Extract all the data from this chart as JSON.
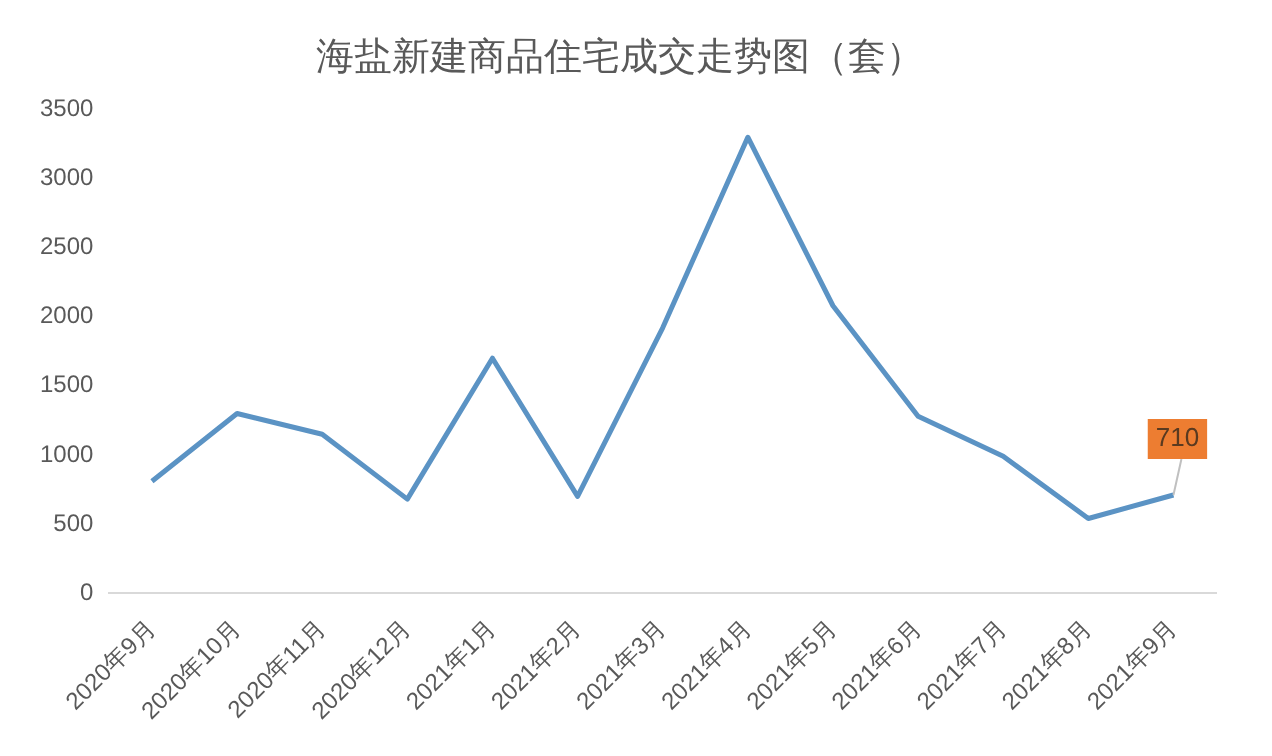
{
  "chart_data": {
    "type": "line",
    "title": "海盐新建商品住宅成交走势图（套）",
    "categories": [
      "2020年9月",
      "2020年10月",
      "2020年11月",
      "2020年12月",
      "2021年1月",
      "2021年2月",
      "2021年3月",
      "2021年4月",
      "2021年5月",
      "2021年6月",
      "2021年7月",
      "2021年8月",
      "2021年9月"
    ],
    "series": [
      {
        "color": "#5b93c4",
        "values": [
          810,
          1300,
          1150,
          680,
          1700,
          700,
          1920,
          3300,
          2080,
          1280,
          990,
          540,
          710
        ],
        "value_labels": [
          null,
          null,
          null,
          null,
          null,
          null,
          null,
          null,
          null,
          null,
          null,
          null,
          "710"
        ]
      }
    ],
    "ylim": [
      0,
      3500
    ],
    "yticks": [
      0,
      500,
      1000,
      1500,
      2000,
      2500,
      3000,
      3500
    ],
    "grid": false,
    "legend": false,
    "marker": "none",
    "line_style": "solid"
  }
}
